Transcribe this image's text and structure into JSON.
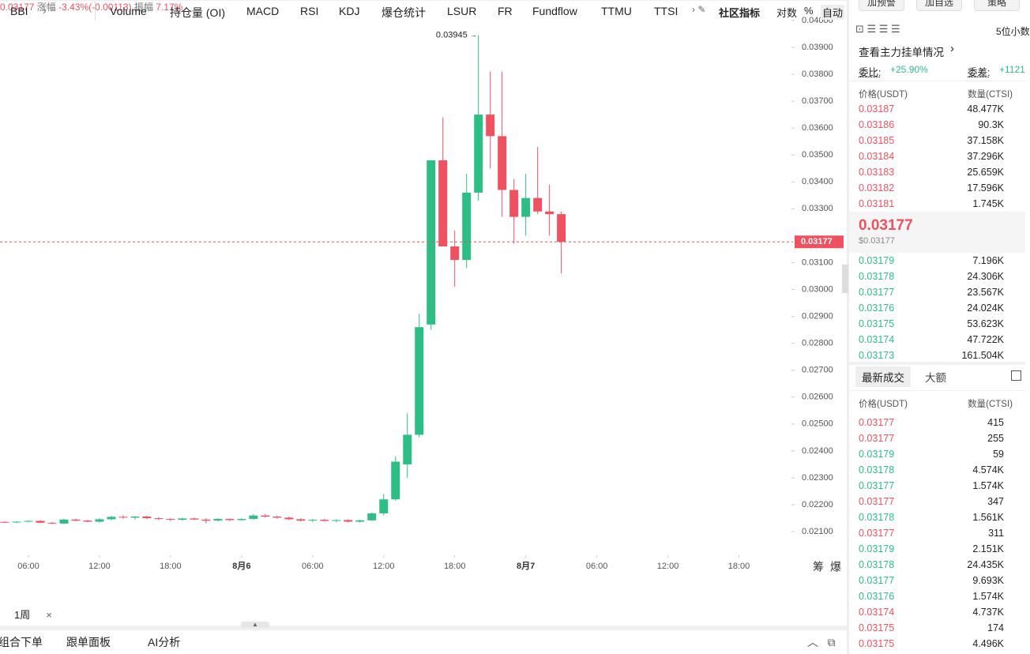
{
  "header": {
    "price": "0.03177",
    "change_label": "涨幅",
    "change": "-3.43%(-0.00113)",
    "amp_label": "振幅",
    "amp": "7.17%"
  },
  "top_buttons": [
    "加预警",
    "加自选",
    "策略"
  ],
  "chart_data": {
    "type": "candlestick",
    "up_color": "#2ebd85",
    "down_color": "#ef5160",
    "candles": [
      {
        "open": 0.02136,
        "high": 0.02139,
        "low": 0.02133,
        "close": 0.02134
      },
      {
        "open": 0.02134,
        "high": 0.02138,
        "low": 0.02131,
        "close": 0.02137
      },
      {
        "open": 0.02137,
        "high": 0.02142,
        "low": 0.02134,
        "close": 0.0214
      },
      {
        "open": 0.0214,
        "high": 0.02143,
        "low": 0.02132,
        "close": 0.02133
      },
      {
        "open": 0.02133,
        "high": 0.02136,
        "low": 0.02128,
        "close": 0.0213
      },
      {
        "open": 0.0213,
        "high": 0.02148,
        "low": 0.02129,
        "close": 0.02145
      },
      {
        "open": 0.02145,
        "high": 0.02149,
        "low": 0.02138,
        "close": 0.02141
      },
      {
        "open": 0.02141,
        "high": 0.02144,
        "low": 0.02135,
        "close": 0.02137
      },
      {
        "open": 0.02137,
        "high": 0.0215,
        "low": 0.02134,
        "close": 0.02146
      },
      {
        "open": 0.02146,
        "high": 0.0216,
        "low": 0.02142,
        "close": 0.02155
      },
      {
        "open": 0.02155,
        "high": 0.02161,
        "low": 0.02148,
        "close": 0.02152
      },
      {
        "open": 0.02152,
        "high": 0.02158,
        "low": 0.02145,
        "close": 0.02156
      },
      {
        "open": 0.02156,
        "high": 0.02159,
        "low": 0.02147,
        "close": 0.0215
      },
      {
        "open": 0.0215,
        "high": 0.02154,
        "low": 0.02143,
        "close": 0.02147
      },
      {
        "open": 0.02147,
        "high": 0.02151,
        "low": 0.0214,
        "close": 0.02144
      },
      {
        "open": 0.02144,
        "high": 0.02152,
        "low": 0.02141,
        "close": 0.02149
      },
      {
        "open": 0.02149,
        "high": 0.02153,
        "low": 0.02143,
        "close": 0.02145
      },
      {
        "open": 0.02145,
        "high": 0.0215,
        "low": 0.02131,
        "close": 0.02141
      },
      {
        "open": 0.02141,
        "high": 0.0215,
        "low": 0.02138,
        "close": 0.02147
      },
      {
        "open": 0.02147,
        "high": 0.02149,
        "low": 0.02139,
        "close": 0.02143
      },
      {
        "open": 0.02143,
        "high": 0.0215,
        "low": 0.02141,
        "close": 0.02147
      },
      {
        "open": 0.02147,
        "high": 0.02165,
        "low": 0.02145,
        "close": 0.0216
      },
      {
        "open": 0.0216,
        "high": 0.02166,
        "low": 0.02152,
        "close": 0.02156
      },
      {
        "open": 0.02156,
        "high": 0.0216,
        "low": 0.02148,
        "close": 0.02152
      },
      {
        "open": 0.02152,
        "high": 0.02156,
        "low": 0.02143,
        "close": 0.02146
      },
      {
        "open": 0.02146,
        "high": 0.0215,
        "low": 0.02138,
        "close": 0.02141
      },
      {
        "open": 0.02141,
        "high": 0.02147,
        "low": 0.02136,
        "close": 0.02144
      },
      {
        "open": 0.02144,
        "high": 0.02148,
        "low": 0.02137,
        "close": 0.0214
      },
      {
        "open": 0.0214,
        "high": 0.02146,
        "low": 0.02135,
        "close": 0.02143
      },
      {
        "open": 0.02143,
        "high": 0.02146,
        "low": 0.02134,
        "close": 0.02137
      },
      {
        "open": 0.02137,
        "high": 0.02145,
        "low": 0.02133,
        "close": 0.02142
      },
      {
        "open": 0.02142,
        "high": 0.02172,
        "low": 0.0214,
        "close": 0.02168
      },
      {
        "open": 0.02168,
        "high": 0.0224,
        "low": 0.0216,
        "close": 0.0222
      },
      {
        "open": 0.0222,
        "high": 0.0238,
        "low": 0.02215,
        "close": 0.0236
      },
      {
        "open": 0.0235,
        "high": 0.0254,
        "low": 0.023,
        "close": 0.0246
      },
      {
        "open": 0.0246,
        "high": 0.0291,
        "low": 0.0245,
        "close": 0.0286
      },
      {
        "open": 0.0287,
        "high": 0.0348,
        "low": 0.0285,
        "close": 0.0348
      },
      {
        "open": 0.0348,
        "high": 0.0364,
        "low": 0.0316,
        "close": 0.0316
      },
      {
        "open": 0.0316,
        "high": 0.0322,
        "low": 0.0301,
        "close": 0.0311
      },
      {
        "open": 0.0311,
        "high": 0.0343,
        "low": 0.0308,
        "close": 0.0336
      },
      {
        "open": 0.0336,
        "high": 0.03945,
        "low": 0.0333,
        "close": 0.0365
      },
      {
        "open": 0.0365,
        "high": 0.0381,
        "low": 0.0345,
        "close": 0.0357
      },
      {
        "open": 0.0357,
        "high": 0.0381,
        "low": 0.0327,
        "close": 0.0337
      },
      {
        "open": 0.0337,
        "high": 0.0341,
        "low": 0.0317,
        "close": 0.0327
      },
      {
        "open": 0.0327,
        "high": 0.0343,
        "low": 0.032,
        "close": 0.0334
      },
      {
        "open": 0.0334,
        "high": 0.0353,
        "low": 0.0328,
        "close": 0.0329
      },
      {
        "open": 0.0329,
        "high": 0.0339,
        "low": 0.032,
        "close": 0.0328
      },
      {
        "open": 0.0328,
        "high": 0.0329,
        "low": 0.0306,
        "close": 0.03177
      }
    ],
    "max_label": "0.03945",
    "last_price": {
      "value": 0.03177,
      "label": "0.03177"
    },
    "xlim": [
      -0.4,
      66.3
    ],
    "xticks": [
      {
        "value": 2,
        "label": "06:00"
      },
      {
        "value": 8,
        "label": "12:00"
      },
      {
        "value": 14,
        "label": "18:00"
      },
      {
        "value": 20,
        "label": "8月6"
      },
      {
        "value": 26,
        "label": "06:00"
      },
      {
        "value": 32,
        "label": "12:00"
      },
      {
        "value": 38,
        "label": "18:00"
      },
      {
        "value": 44,
        "label": "8月7"
      },
      {
        "value": 50,
        "label": "06:00"
      },
      {
        "value": 56,
        "label": "12:00"
      },
      {
        "value": 62,
        "label": "18:00"
      }
    ],
    "ylim": [
      0.02021,
      0.04076
    ],
    "yticks": [
      {
        "value": 0.04,
        "label": "0.04000"
      },
      {
        "value": 0.039,
        "label": "0.03900"
      },
      {
        "value": 0.038,
        "label": "0.03800"
      },
      {
        "value": 0.037,
        "label": "0.03700"
      },
      {
        "value": 0.036,
        "label": "0.03600"
      },
      {
        "value": 0.035,
        "label": "0.03500"
      },
      {
        "value": 0.034,
        "label": "0.03400"
      },
      {
        "value": 0.033,
        "label": "0.03300"
      },
      {
        "value": 0.031,
        "label": "0.03100"
      },
      {
        "value": 0.03,
        "label": "0.03000"
      },
      {
        "value": 0.029,
        "label": "0.02900"
      },
      {
        "value": 0.028,
        "label": "0.02800"
      },
      {
        "value": 0.027,
        "label": "0.02700"
      },
      {
        "value": 0.026,
        "label": "0.02600"
      },
      {
        "value": 0.025,
        "label": "0.02500"
      },
      {
        "value": 0.024,
        "label": "0.02400"
      },
      {
        "value": 0.023,
        "label": "0.02300"
      },
      {
        "value": 0.022,
        "label": "0.02200"
      },
      {
        "value": 0.021,
        "label": "0.02100"
      }
    ],
    "side_labels": [
      "筹",
      "爆"
    ]
  },
  "indicator_bar": {
    "first": "BBI",
    "items": [
      "Volume",
      "持仓量 (OI)",
      "MACD",
      "RSI",
      "KDJ",
      "爆仓统计",
      "LSUR",
      "FR",
      "Fundflow",
      "TTMU",
      "TTSI"
    ],
    "community": "社区指标",
    "options": [
      "对数",
      "%",
      "自动"
    ]
  },
  "interval": "1周",
  "bottom_tabs": [
    "组合下单",
    "跟单面板",
    "AI分析"
  ],
  "orderbook": {
    "decimals": "5位小数",
    "main_orders": "查看主力挂单情况",
    "ratio_label": "委比:",
    "ratio": "+25.90%",
    "diff_label": "委差:",
    "diff": "+1121",
    "price_header": "价格(USDT)",
    "qty_header": "数量(CTSI)",
    "asks": [
      [
        "0.03187",
        "48.477K"
      ],
      [
        "0.03186",
        "90.3K"
      ],
      [
        "0.03185",
        "37.158K"
      ],
      [
        "0.03184",
        "37.296K"
      ],
      [
        "0.03183",
        "25.659K"
      ],
      [
        "0.03182",
        "17.596K"
      ],
      [
        "0.03181",
        "1.745K"
      ]
    ],
    "mid": "0.03177",
    "mid_usd": "$0.03177",
    "bids": [
      [
        "0.03179",
        "7.196K"
      ],
      [
        "0.03178",
        "24.306K"
      ],
      [
        "0.03177",
        "23.567K"
      ],
      [
        "0.03176",
        "24.024K"
      ],
      [
        "0.03175",
        "53.623K"
      ],
      [
        "0.03174",
        "47.722K"
      ],
      [
        "0.03173",
        "161.504K"
      ]
    ]
  },
  "trades": {
    "tabs": [
      "最新成交",
      "大额"
    ],
    "price_header": "价格(USDT)",
    "qty_header": "数量(CTSI)",
    "rows": [
      [
        "0.03177",
        "415",
        "sell"
      ],
      [
        "0.03177",
        "255",
        "sell"
      ],
      [
        "0.03179",
        "59",
        "buy"
      ],
      [
        "0.03178",
        "4.574K",
        "buy"
      ],
      [
        "0.03177",
        "1.574K",
        "buy"
      ],
      [
        "0.03177",
        "347",
        "sell"
      ],
      [
        "0.03178",
        "1.561K",
        "buy"
      ],
      [
        "0.03177",
        "311",
        "sell"
      ],
      [
        "0.03179",
        "2.151K",
        "buy"
      ],
      [
        "0.03178",
        "24.435K",
        "buy"
      ],
      [
        "0.03177",
        "9.693K",
        "buy"
      ],
      [
        "0.03176",
        "1.574K",
        "buy"
      ],
      [
        "0.03174",
        "4.737K",
        "sell"
      ],
      [
        "0.03175",
        "174",
        "sell"
      ],
      [
        "0.03175",
        "4.496K",
        "sell"
      ]
    ]
  }
}
